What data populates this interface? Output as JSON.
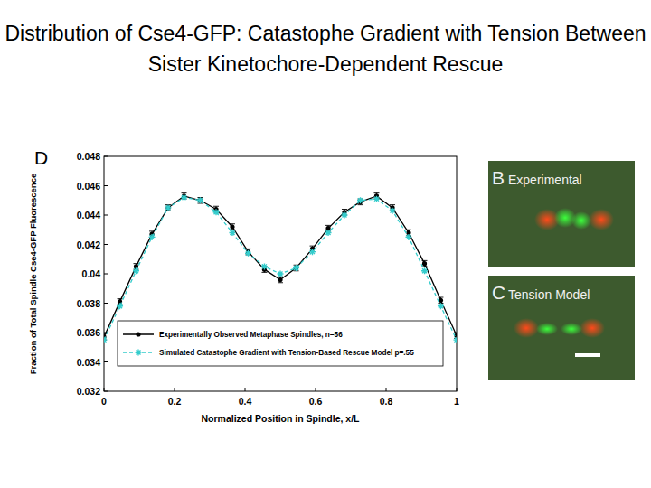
{
  "slide_title": "Distribution of Cse4-GFP: Catastophe Gradient with Tension Between Sister Kinetochore-Dependent Rescue",
  "images": [
    {
      "label": "B",
      "title": "Experimental"
    },
    {
      "label": "C",
      "title": "Tension Model"
    }
  ],
  "chart_data": {
    "type": "line",
    "annotations": [
      "D"
    ],
    "x_label": "Normalized Position in Spindle, x/L",
    "y_label": "Fraction of Total Spindle Cse4-GFP Fluorescence",
    "x": [
      0,
      0.045,
      0.091,
      0.136,
      0.182,
      0.227,
      0.273,
      0.318,
      0.364,
      0.409,
      0.455,
      0.5,
      0.545,
      0.591,
      0.636,
      0.682,
      0.727,
      0.773,
      0.818,
      0.864,
      0.909,
      0.955,
      1
    ],
    "series": [
      {
        "name": "Experimentally Observed Metaphase Spindles, n=56",
        "color": "#000000",
        "marker": "circle",
        "line_style": "solid",
        "values": [
          0.0357,
          0.0381,
          0.0405,
          0.0427,
          0.0445,
          0.0453,
          0.045,
          0.0444,
          0.0432,
          0.0415,
          0.0403,
          0.0396,
          0.0404,
          0.0417,
          0.0431,
          0.0442,
          0.0449,
          0.0453,
          0.0445,
          0.0428,
          0.0407,
          0.0382,
          0.0358
        ],
        "errors": [
          0.0002,
          0.0002,
          0.0002,
          0.0002,
          0.0002,
          0.0002,
          0.0002,
          0.0002,
          0.0002,
          0.0002,
          0.0002,
          0.0002,
          0.0002,
          0.0002,
          0.0002,
          0.0002,
          0.0002,
          0.0002,
          0.0002,
          0.0002,
          0.0002,
          0.0002,
          0.0002
        ]
      },
      {
        "name": "Simulated Catastophe Gradient with Tension-Based Rescue Model  p=.55",
        "color": "#33cccc",
        "marker": "star",
        "line_style": "dashed",
        "values": [
          0.0355,
          0.0378,
          0.0402,
          0.0425,
          0.0445,
          0.0452,
          0.045,
          0.0442,
          0.0428,
          0.0414,
          0.0405,
          0.04,
          0.0404,
          0.0415,
          0.0428,
          0.044,
          0.045,
          0.0451,
          0.0443,
          0.0425,
          0.0402,
          0.0378,
          0.0355
        ]
      }
    ],
    "xlim": [
      0,
      1
    ],
    "xticks": [
      0,
      0.2,
      0.4,
      0.6,
      0.8,
      1
    ],
    "ylim": [
      0.032,
      0.048
    ],
    "yticks": [
      0.032,
      0.034,
      0.036,
      0.038,
      0.04,
      0.042,
      0.044,
      0.046,
      0.048
    ],
    "grid": false,
    "legend": "bottom"
  }
}
